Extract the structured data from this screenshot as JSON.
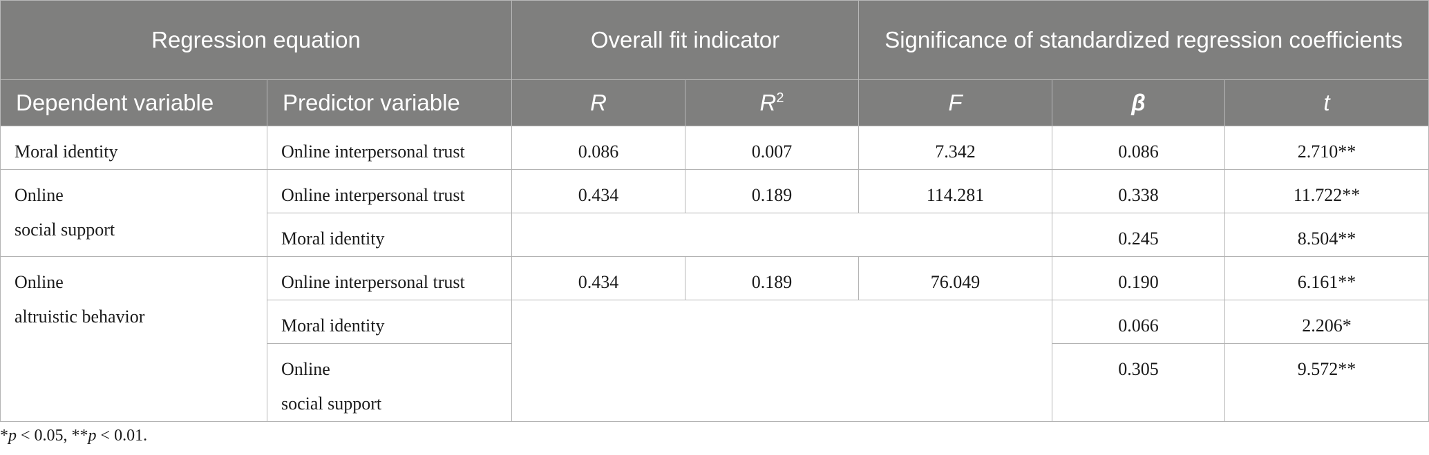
{
  "table": {
    "group_headers": {
      "regression_equation": "Regression equation",
      "overall_fit": "Overall fit indicator",
      "significance": "Significance of standardized regression coefficients"
    },
    "column_headers": {
      "dependent": "Dependent variable",
      "predictor": "Predictor variable",
      "r": "R",
      "r2_base": "R",
      "r2_sup": "2",
      "f": "F",
      "beta": "β",
      "t": "t"
    },
    "rows": [
      {
        "dependent": "Moral identity",
        "predictor": "Online interpersonal trust",
        "r": "0.086",
        "r2": "0.007",
        "f": "7.342",
        "beta": "0.086",
        "t": "2.710**"
      },
      {
        "dependent_line1": "Online",
        "dependent_line2": "social support",
        "predictor": "Online interpersonal trust",
        "r": "0.434",
        "r2": "0.189",
        "f": "114.281",
        "beta": "0.338",
        "t": "11.722**"
      },
      {
        "predictor": "Moral identity",
        "beta": "0.245",
        "t": "8.504**"
      },
      {
        "dependent_line1": "Online",
        "dependent_line2": "altruistic behavior",
        "predictor": "Online interpersonal trust",
        "r": "0.434",
        "r2": "0.189",
        "f": "76.049",
        "beta": "0.190",
        "t": "6.161**"
      },
      {
        "predictor": "Moral identity",
        "beta": "0.066",
        "t": "2.206*"
      },
      {
        "predictor_line1": "Online",
        "predictor_line2": "social support",
        "beta": "0.305",
        "t": "9.572**"
      }
    ]
  },
  "footnote": {
    "star1": "*",
    "p1": "p",
    "lt1": " < 0.05, **",
    "p2": "p",
    "lt2": " < 0.01."
  }
}
